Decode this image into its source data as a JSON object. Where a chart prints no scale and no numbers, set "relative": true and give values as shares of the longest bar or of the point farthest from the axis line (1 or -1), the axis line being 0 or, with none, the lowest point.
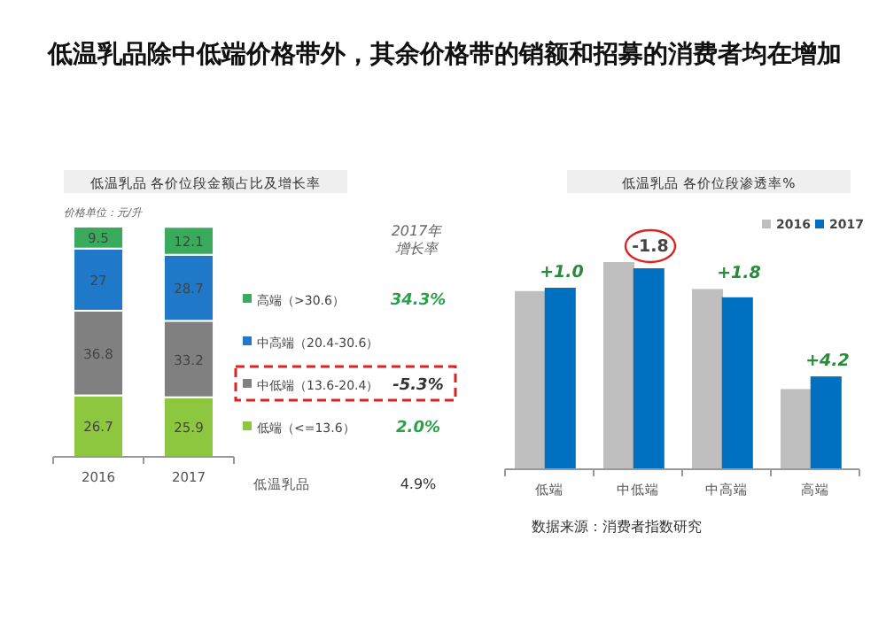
{
  "chart_data": [
    {
      "type": "other",
      "title": "低温乳品除中低端价格带外，其余价格带的销额和招募的消费者均在增加",
      "annotations": [
        "数据来源：消费者指数研究"
      ]
    },
    {
      "type": "bar",
      "stacked": true,
      "data_labels": true,
      "legend": "right",
      "title": "低温乳品  各价位段金额占比及增长率",
      "categories": [
        "2016",
        "2017"
      ],
      "series": [
        {
          "name": "低端（<=13.6）",
          "color": "#8dc63f",
          "values": [
            26.7,
            25.9
          ]
        },
        {
          "name": "中低端（13.6-20.4）",
          "color": "#808080",
          "values": [
            36.8,
            33.2
          ]
        },
        {
          "name": "中高端（20.4-30.6）",
          "color": "#1f78c8",
          "values": [
            27.0,
            28.7
          ]
        },
        {
          "name": "高端（>30.6）",
          "color": "#3aaa5c",
          "values": [
            9.5,
            12.1
          ]
        }
      ],
      "annotations": [
        "价格单位：元/升",
        "2017年",
        "增长率",
        "34.3%",
        null,
        "-5.3%",
        "2.0%",
        "低温乳品",
        "4.9%"
      ]
    },
    {
      "type": "bar",
      "relative": true,
      "legend": "top right",
      "title": "低温乳品  各价位段渗透率%",
      "categories": [
        "低端",
        "中低端",
        "中高端",
        "高端"
      ],
      "series": [
        {
          "name": "2016",
          "color": "#bfbfbf",
          "values": [
            0.86,
            1,
            0.87,
            0.387
          ]
        },
        {
          "name": "2017",
          "color": "#0070c0",
          "values": [
            0.876,
            0.97,
            0.83,
            0.448
          ]
        }
      ],
      "annotations": [
        "+1.0",
        "-1.8",
        "+1.8",
        "+4.2"
      ]
    }
  ]
}
